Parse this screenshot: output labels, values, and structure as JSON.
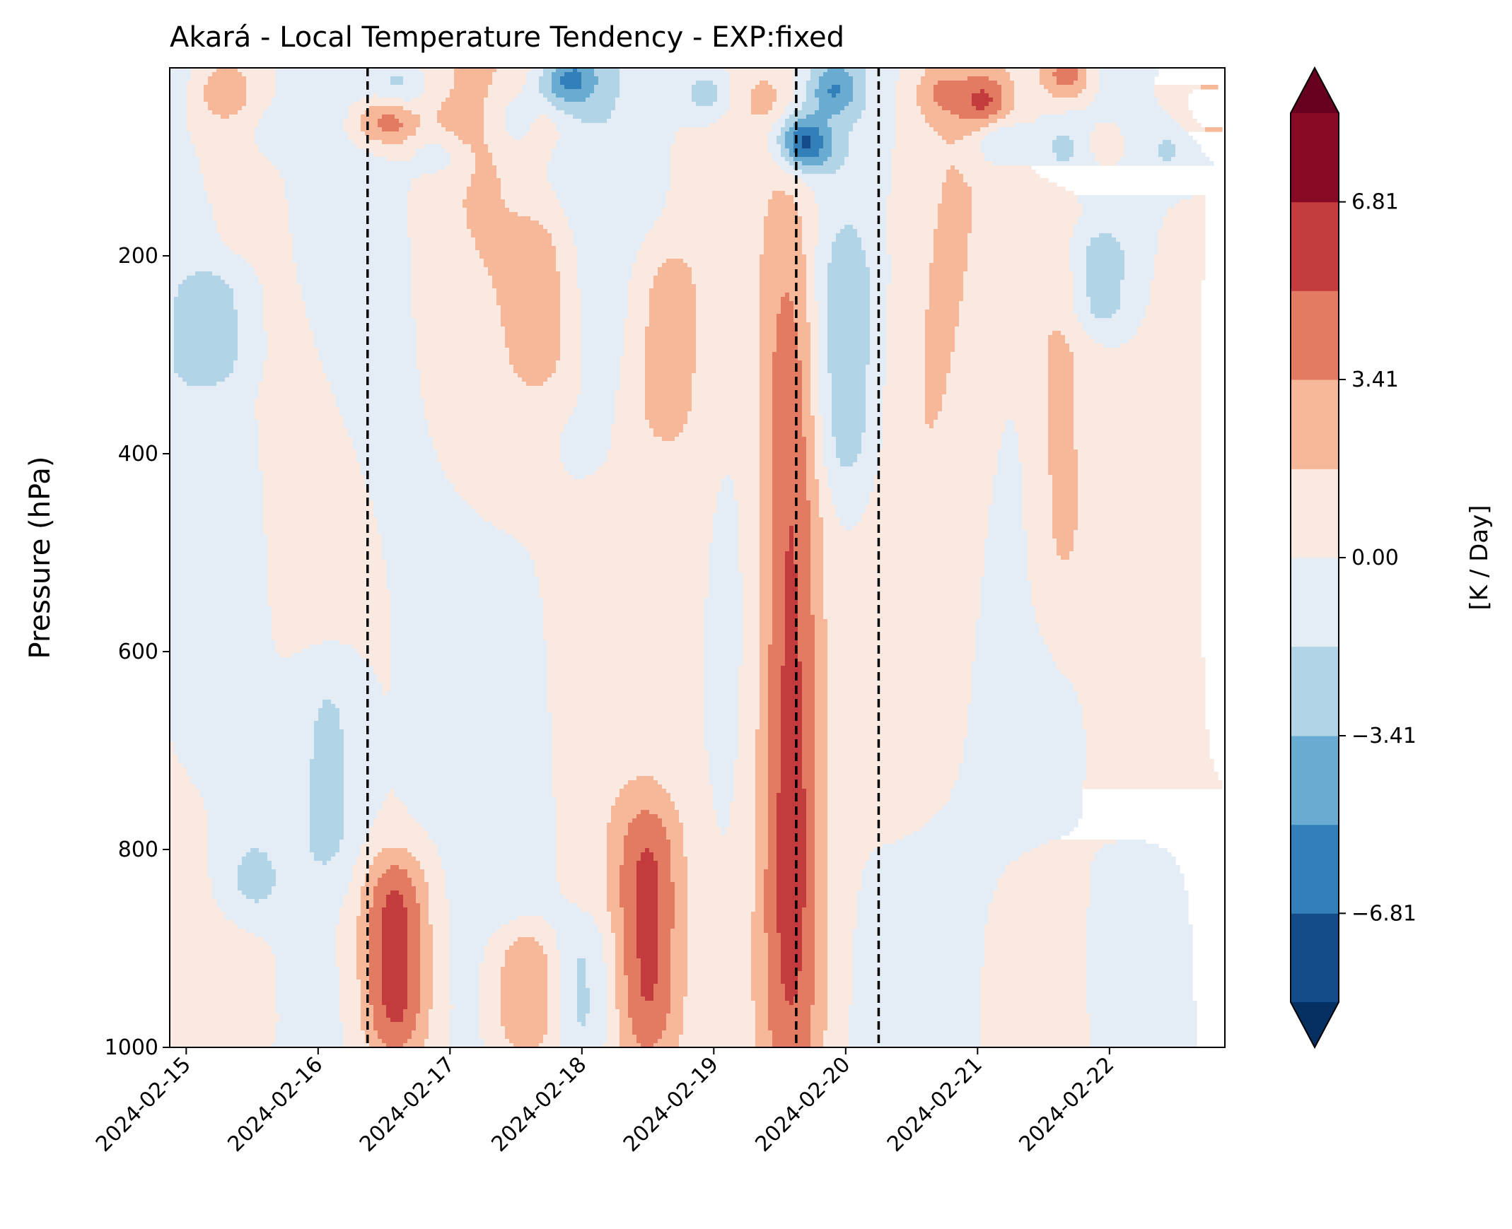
{
  "chart_data": {
    "type": "contour",
    "title": "Akará - Local Temperature Tendency - EXP:fixed",
    "ylabel": "Pressure (hPa)",
    "xlabel": "",
    "x_ticks": [
      "2024-02-15",
      "2024-02-16",
      "2024-02-17",
      "2024-02-18",
      "2024-02-19",
      "2024-02-20",
      "2024-02-21",
      "2024-02-22"
    ],
    "xlim": [
      "2024-02-14T21:00",
      "2024-02-22T21:00"
    ],
    "y_ticks": [
      200,
      400,
      600,
      800,
      1000
    ],
    "ylim": [
      1000,
      10
    ],
    "y_inverted": true,
    "vertical_markers": [
      "2024-02-16T09:00",
      "2024-02-19T15:00",
      "2024-02-20T06:00"
    ],
    "colorbar": {
      "label": "[K / Day]",
      "ticks": [
        -6.81,
        -3.41,
        0.0,
        3.41,
        6.81
      ],
      "tick_labels": [
        "−6.81",
        "−3.41",
        "0.00",
        "3.41",
        "6.81"
      ],
      "levels": [
        -8.51,
        -6.81,
        -5.11,
        -3.41,
        -1.7,
        0.0,
        1.7,
        3.41,
        5.11,
        6.81,
        8.51
      ],
      "colors": [
        "#053061",
        "#134c88",
        "#327fba",
        "#6aabd1",
        "#b1d5e7",
        "#e4edf5",
        "#f9e9e0",
        "#f7b799",
        "#e27b62",
        "#c33b3c",
        "#870a24",
        "#67001f"
      ],
      "extend": "both"
    },
    "structure": [
      {
        "x": "2024-02-15T12:00",
        "p_top": 870,
        "p_bottom": 1000,
        "sign": "positive",
        "peak": 3.0
      },
      {
        "x": "2024-02-16T14:00",
        "p_top": 820,
        "p_bottom": 1000,
        "sign": "positive",
        "peak": 6.0
      },
      {
        "x": "2024-02-17T14:00",
        "p_top": 890,
        "p_bottom": 1000,
        "sign": "positive",
        "peak": 4.0
      },
      {
        "x": "2024-02-18T12:00",
        "p_top": 770,
        "p_bottom": 1000,
        "sign": "positive",
        "peak": 5.0
      },
      {
        "x": "2024-02-19T14:00",
        "p_top": 200,
        "p_bottom": 1000,
        "sign": "positive",
        "peak": 6.5
      },
      {
        "x": "2024-02-17T17:00",
        "p_top": 170,
        "p_bottom": 330,
        "sign": "positive",
        "peak": 2.5
      },
      {
        "x": "2024-02-18T15:00",
        "p_top": 200,
        "p_bottom": 380,
        "sign": "positive",
        "peak": 2.5
      },
      {
        "x": "2024-02-21T15:00",
        "p_top": 170,
        "p_bottom": 550,
        "sign": "positive",
        "peak": 3.0
      },
      {
        "x": "2024-02-15T05:00",
        "p_top": 220,
        "p_bottom": 320,
        "sign": "negative",
        "peak": -2.5
      },
      {
        "x": "2024-02-15T12:00",
        "p_top": 800,
        "p_bottom": 1000,
        "sign": "negative",
        "peak": -2.5
      },
      {
        "x": "2024-02-16T02:00",
        "p_top": 620,
        "p_bottom": 820,
        "sign": "negative",
        "peak": -2.5
      },
      {
        "x": "2024-02-18T00:00",
        "p_top": 880,
        "p_bottom": 1000,
        "sign": "negative",
        "peak": -2.5
      },
      {
        "x": "2024-02-20T00:00",
        "p_top": 200,
        "p_bottom": 420,
        "sign": "negative",
        "peak": -2.5
      },
      {
        "x": "2024-02-21T22:00",
        "p_top": 180,
        "p_bottom": 270,
        "sign": "negative",
        "peak": -2.5
      }
    ]
  }
}
